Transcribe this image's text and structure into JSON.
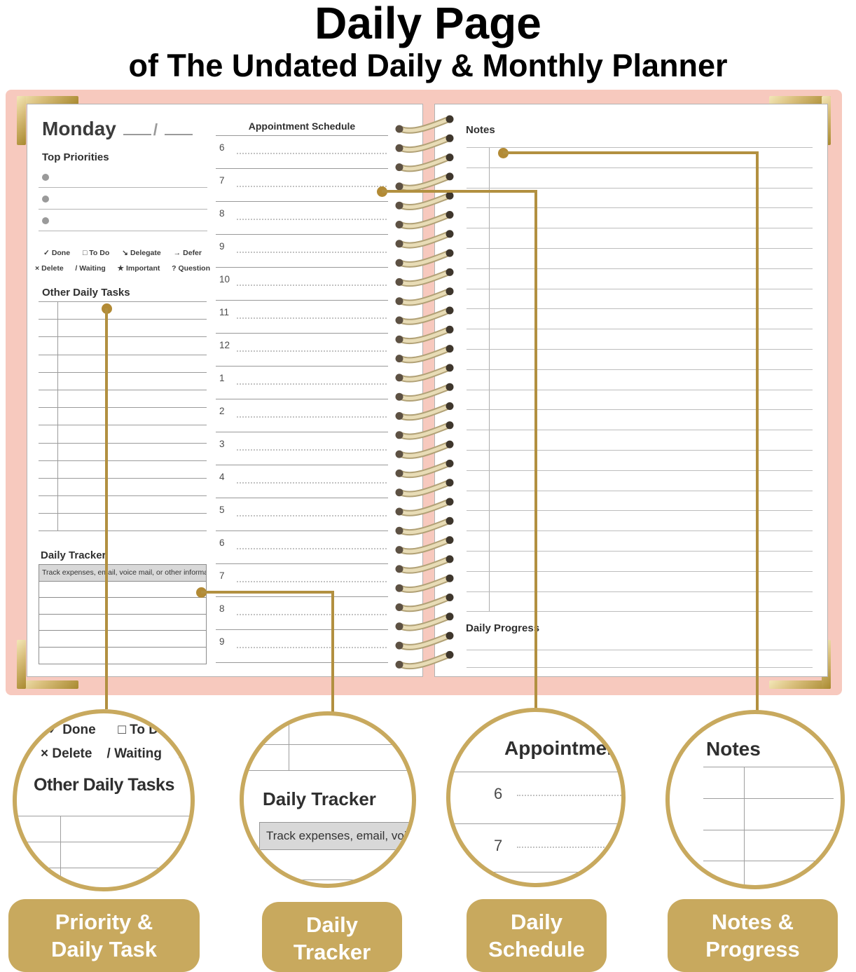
{
  "header": {
    "title": "Daily Page",
    "subtitle": "of The Undated Daily & Monthly Planner"
  },
  "left_page": {
    "day_label": "Monday",
    "date_separator": "/",
    "top_priorities_title": "Top Priorities",
    "legend_row1": [
      {
        "symbol": "✓",
        "label": "Done"
      },
      {
        "symbol": "□",
        "label": "To Do"
      },
      {
        "symbol": "↘",
        "label": "Delegate"
      },
      {
        "symbol": "→",
        "label": "Defer"
      }
    ],
    "legend_row2": [
      {
        "symbol": "×",
        "label": "Delete"
      },
      {
        "symbol": "/",
        "label": "Waiting"
      },
      {
        "symbol": "★",
        "label": "Important"
      },
      {
        "symbol": "?",
        "label": "Question"
      }
    ],
    "other_daily_tasks_title": "Other Daily Tasks",
    "daily_tracker_title": "Daily Tracker",
    "daily_tracker_header": "Track expenses, email, voice mail, or other information."
  },
  "schedule": {
    "title": "Appointment Schedule",
    "hours": [
      "6",
      "7",
      "8",
      "9",
      "10",
      "11",
      "12",
      "1",
      "2",
      "3",
      "4",
      "5",
      "6",
      "7",
      "8",
      "9"
    ]
  },
  "right_page": {
    "notes_title": "Notes",
    "daily_progress_title": "Daily Progress"
  },
  "callouts": {
    "circle1": {
      "legend_row1": "✓ Done      □ To Do",
      "legend_row2": "× Delete    / Waiting    ★ I",
      "title": "Other Daily Tasks"
    },
    "circle2": {
      "title": "Daily Tracker",
      "tracker_text": "Track expenses, email, voice mai"
    },
    "circle3": {
      "title": "Appointment",
      "hours": [
        "6",
        "7"
      ]
    },
    "circle4": {
      "title": "Notes"
    }
  },
  "feature_labels": [
    {
      "line1": "Priority &",
      "line2": "Daily Task"
    },
    {
      "line1": "Daily",
      "line2": "Tracker"
    },
    {
      "line1": "Daily",
      "line2": "Schedule"
    },
    {
      "line1": "Notes &",
      "line2": "Progress"
    }
  ],
  "colors": {
    "gold": "#c8a95e",
    "gold_line": "#b29040",
    "cover_pink": "#f7c9be",
    "tracker_header_bg": "#d8d8d8"
  }
}
